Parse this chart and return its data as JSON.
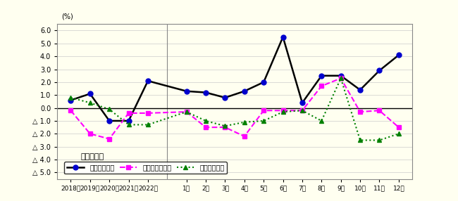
{
  "background_color": "#FFFFF0",
  "plot_bg_color": "#FFFFF0",
  "title_text": "調査産業計",
  "ylabel_text": "(%)",
  "ylim": [
    -5.5,
    6.5
  ],
  "ytick_positions": [
    -5.0,
    -4.0,
    -3.0,
    -2.0,
    -1.0,
    0.0,
    1.0,
    2.0,
    3.0,
    4.0,
    5.0,
    6.0
  ],
  "x_labels_annual": [
    "2018年",
    "2019年",
    "2020年",
    "2021年",
    "2022年"
  ],
  "x_labels_monthly": [
    "1月",
    "2月",
    "3月",
    "4月",
    "5月",
    "6月",
    "7月",
    "8月",
    "9月",
    "10月",
    "11月",
    "12月"
  ],
  "series": [
    {
      "name": "現金給与総額",
      "line_color": "#000000",
      "marker_color": "#0000CD",
      "marker": "o",
      "linestyle": "-",
      "linewidth": 1.8,
      "markersize": 5,
      "values": [
        0.6,
        1.1,
        -1.0,
        -1.0,
        2.1,
        1.3,
        1.2,
        0.8,
        1.3,
        2.0,
        5.5,
        0.4,
        2.5,
        2.5,
        1.4,
        2.9,
        4.1
      ]
    },
    {
      "name": "総実労働時間数",
      "line_color": "#FF00FF",
      "marker_color": "#FF00FF",
      "marker": "s",
      "linestyle": "--",
      "linewidth": 1.5,
      "markersize": 5,
      "values": [
        -0.2,
        -2.0,
        -2.4,
        -0.4,
        -0.4,
        -0.3,
        -1.5,
        -1.5,
        -2.2,
        -0.2,
        -0.2,
        -0.2,
        1.7,
        2.3,
        -0.3,
        -0.2,
        -1.5
      ]
    },
    {
      "name": "常用労働者数",
      "line_color": "#008000",
      "marker_color": "#008000",
      "marker": "^",
      "linestyle": ":",
      "linewidth": 1.5,
      "markersize": 5,
      "values": [
        0.8,
        0.4,
        -0.1,
        -1.3,
        -1.3,
        -0.3,
        -1.0,
        -1.4,
        -1.1,
        -1.0,
        -0.3,
        -0.2,
        -1.0,
        2.3,
        -2.5,
        -2.5,
        -2.0
      ]
    }
  ]
}
